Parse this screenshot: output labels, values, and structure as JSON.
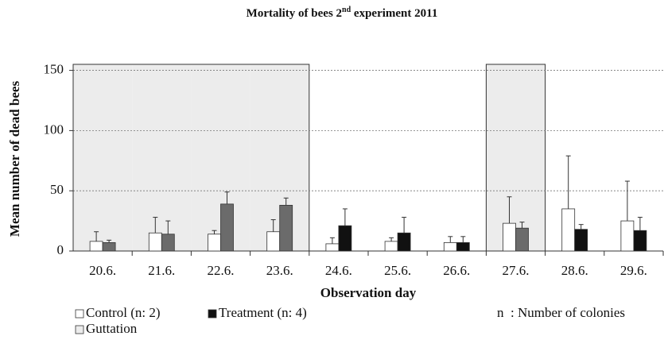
{
  "chart_data": {
    "type": "bar",
    "title": [
      "Mortality of bees 2",
      "nd",
      " experiment 2011"
    ],
    "x_label": "Observation day",
    "y_label": "Mean number of dead bees",
    "categories": [
      "20.6.",
      "21.6.",
      "22.6.",
      "23.6.",
      "24.6.",
      "25.6.",
      "26.6.",
      "27.6.",
      "28.6.",
      "29.6."
    ],
    "series": [
      {
        "name": "Control (n: 2)",
        "color": "#ffffff",
        "values": [
          8,
          15,
          14,
          16,
          6,
          8,
          7,
          23,
          35,
          25
        ],
        "errors": [
          8,
          13,
          3,
          10,
          5,
          3,
          5,
          22,
          44,
          33
        ]
      },
      {
        "name": "Treatment (n: 4)",
        "color": "#111111",
        "guttation_color": "#6b6b6b",
        "values": [
          7,
          14,
          39,
          38,
          21,
          15,
          7,
          19,
          18,
          17
        ],
        "errors": [
          2,
          11,
          10,
          6,
          14,
          13,
          5,
          5,
          4,
          11
        ]
      }
    ],
    "guttation": {
      "name": "Guttation",
      "color": "#ececec",
      "days": [
        true,
        true,
        true,
        true,
        false,
        false,
        false,
        true,
        false,
        false
      ]
    },
    "annotation": "n  : Number of colonies",
    "ylim": [
      0,
      155
    ],
    "yticks": [
      0,
      50,
      100,
      150
    ],
    "grid": true
  }
}
